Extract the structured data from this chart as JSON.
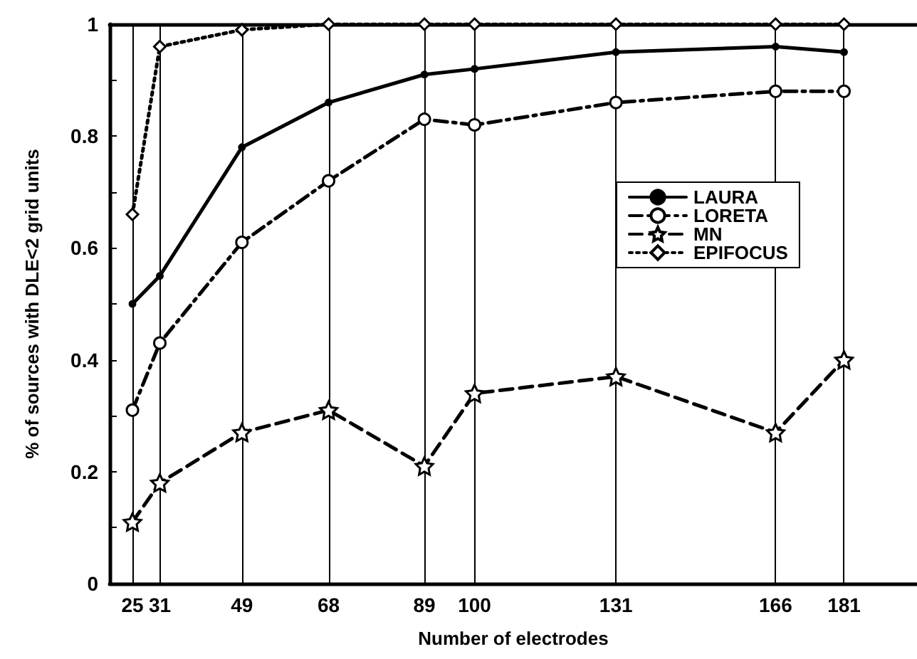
{
  "chart_data": {
    "type": "line",
    "xlabel": "Number of electrodes",
    "ylabel": "% of sources with DLE<2 grid units",
    "x": [
      25,
      31,
      49,
      68,
      89,
      100,
      131,
      166,
      181
    ],
    "xlim": [
      20,
      197
    ],
    "xticks": [
      25,
      31,
      49,
      68,
      89,
      100,
      131,
      166,
      181
    ],
    "ylim": [
      0,
      1
    ],
    "yticks": [
      0,
      {
        "value": 0.1,
        "label": null
      },
      0.2,
      {
        "value": 0.3,
        "label": null
      },
      0.4,
      {
        "value": 0.5,
        "label": null
      },
      0.6,
      {
        "value": 0.7,
        "label": null
      },
      0.8,
      {
        "value": 0.9,
        "label": null
      },
      1
    ],
    "grid": "x",
    "legend": "right",
    "series": [
      {
        "name": "LAURA",
        "color": "#000000",
        "marker": "circle",
        "line_style": "solid",
        "values": [
          0.5,
          0.55,
          0.78,
          0.86,
          0.91,
          0.92,
          0.95,
          0.96,
          0.95
        ]
      },
      {
        "name": "LORETA",
        "color": "#000000",
        "marker": "circle",
        "line_style": "dashdot",
        "values": [
          0.31,
          0.43,
          0.61,
          0.72,
          0.83,
          0.82,
          0.86,
          0.88,
          0.88
        ]
      },
      {
        "name": "MN",
        "color": "#000000",
        "marker": "star",
        "line_style": "dashed",
        "values": [
          0.11,
          0.18,
          0.27,
          0.31,
          0.21,
          0.34,
          0.37,
          0.27,
          0.4
        ]
      },
      {
        "name": "EPIFOCUS",
        "color": "#000000",
        "marker": "diamond",
        "line_style": "dotted",
        "values": [
          0.66,
          0.96,
          0.99,
          1,
          1,
          1,
          1,
          1,
          1
        ]
      }
    ]
  }
}
